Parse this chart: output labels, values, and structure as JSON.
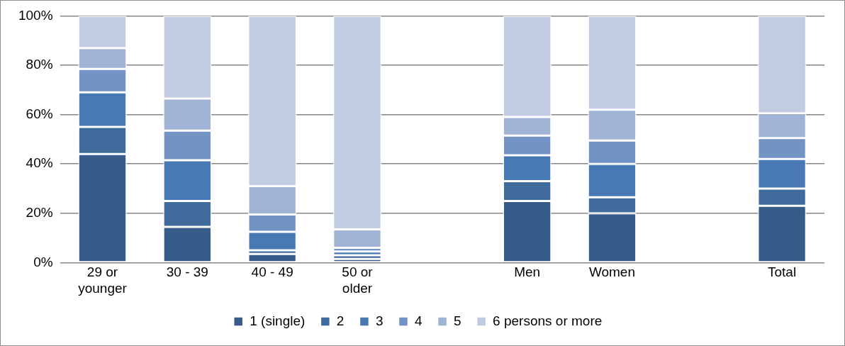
{
  "chart_data": {
    "type": "bar",
    "stacked": true,
    "categories": [
      "29 or younger",
      "30 - 39",
      "40 - 49",
      "50 or older",
      null,
      "Men",
      "Women",
      null,
      "Total"
    ],
    "series": [
      {
        "name": "1 (single)",
        "color": "#375c8a",
        "values": [
          44,
          14.5,
          3.5,
          1.5,
          null,
          25,
          20,
          null,
          23
        ]
      },
      {
        "name": "2",
        "color": "#3f6a9c",
        "values": [
          11,
          10.5,
          1.5,
          1.5,
          null,
          8,
          6.5,
          null,
          7
        ]
      },
      {
        "name": "3",
        "color": "#4879b4",
        "values": [
          14,
          16.5,
          7.5,
          1.5,
          null,
          10.5,
          13.5,
          null,
          12
        ]
      },
      {
        "name": "4",
        "color": "#7393c4",
        "values": [
          9.5,
          12,
          7,
          1.5,
          null,
          8,
          9.5,
          null,
          8.5
        ]
      },
      {
        "name": "5",
        "color": "#a1b3d5",
        "values": [
          8.5,
          13,
          11.5,
          7.5,
          null,
          7.5,
          12.5,
          null,
          10
        ]
      },
      {
        "name": "6 persons or more",
        "color": "#c1cce2",
        "values": [
          13,
          33.5,
          69,
          86.5,
          null,
          41,
          38,
          null,
          39.5
        ]
      }
    ],
    "ylim": [
      0,
      100
    ],
    "yticks": [
      {
        "value": 0,
        "label": "0%"
      },
      {
        "value": 20,
        "label": "20%"
      },
      {
        "value": 40,
        "label": "40%"
      },
      {
        "value": 60,
        "label": "60%"
      },
      {
        "value": 80,
        "label": "80%"
      },
      {
        "value": 100,
        "label": "100%"
      }
    ],
    "grid": "y",
    "legend": "bottom"
  }
}
